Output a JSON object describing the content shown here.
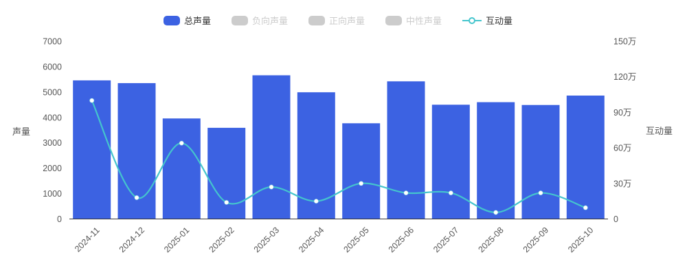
{
  "colors": {
    "bar_blue": "#3c62e2",
    "line_teal": "#44c5cd",
    "inactive_gray": "#cccccc",
    "legend_active_text": "#333333",
    "legend_inactive_text": "#cccccc",
    "axis_text": "#555555",
    "axis_line": "#333333",
    "background": "#ffffff"
  },
  "legend": {
    "items": [
      {
        "label": "总声量",
        "type": "bar",
        "active": true
      },
      {
        "label": "负向声量",
        "type": "bar",
        "active": false
      },
      {
        "label": "正向声量",
        "type": "bar",
        "active": false
      },
      {
        "label": "中性声量",
        "type": "bar",
        "active": false
      },
      {
        "label": "互动量",
        "type": "line",
        "active": true
      }
    ]
  },
  "axes": {
    "left": {
      "title": "声量",
      "max": 7000,
      "ticks": [
        "0",
        "1000",
        "2000",
        "3000",
        "4000",
        "5000",
        "6000",
        "7000"
      ]
    },
    "right": {
      "title": "互动量",
      "max_wan": 150,
      "ticks": [
        "0",
        "30万",
        "60万",
        "90万",
        "120万",
        "150万"
      ]
    }
  },
  "chart_data": {
    "type": "bar+line",
    "title": "",
    "categories": [
      "2024-11",
      "2024-12",
      "2025-01",
      "2025-02",
      "2025-03",
      "2025-04",
      "2025-05",
      "2025-06",
      "2025-07",
      "2025-08",
      "2025-09",
      "2025-10"
    ],
    "series": [
      {
        "name": "总声量",
        "type": "bar",
        "yaxis": "left",
        "color": "#3c62e2",
        "values": [
          5460,
          5350,
          3960,
          3590,
          5660,
          4990,
          3770,
          5420,
          4500,
          4600,
          4490,
          4860
        ]
      },
      {
        "name": "互动量",
        "type": "line",
        "yaxis": "right",
        "unit": "万",
        "color": "#44c5cd",
        "smooth": true,
        "values": [
          100,
          18,
          64,
          14,
          27,
          15,
          30,
          22,
          22,
          5.5,
          22,
          9.5
        ]
      }
    ],
    "legend_entries_inactive": [
      "负向声量",
      "正向声量",
      "中性声量"
    ],
    "xlabel": "",
    "ylabel_left": "声量",
    "ylabel_right": "互动量",
    "ylim_left": [
      0,
      7000
    ],
    "ylim_right_wan": [
      0,
      150
    ],
    "grid": false,
    "legend_position": "top",
    "x_tick_rotation": 45
  }
}
